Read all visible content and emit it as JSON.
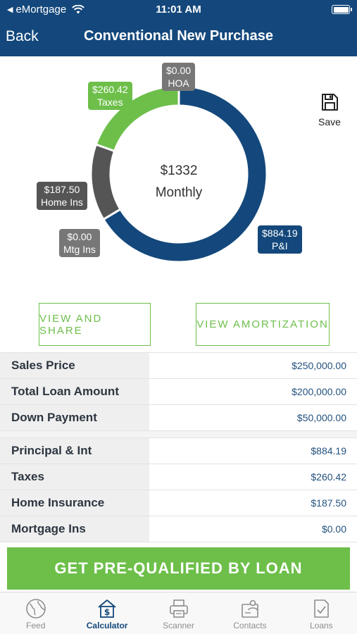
{
  "status_bar": {
    "carrier": "eMortgage",
    "time": "11:01 AM"
  },
  "nav": {
    "back_label": "Back",
    "title": "Conventional New Purchase"
  },
  "chart": {
    "center_amount": "$1332",
    "center_caption": "Monthly",
    "save_label": "Save",
    "colors": {
      "pi": "#14487c",
      "taxes": "#6dbf4a",
      "home_ins": "#555555",
      "mtg_ins": "#7a7a7a",
      "hoa": "#7a7a7a"
    },
    "labels": {
      "hoa": {
        "amount": "$0.00",
        "name": "HOA"
      },
      "taxes": {
        "amount": "$260.42",
        "name": "Taxes"
      },
      "home_ins": {
        "amount": "$187.50",
        "name": "Home Ins"
      },
      "mtg_ins": {
        "amount": "$0.00",
        "name": "Mtg Ins"
      },
      "pi": {
        "amount": "$884.19",
        "name": "P&I"
      }
    }
  },
  "chart_data": {
    "type": "pie",
    "categories": [
      "P&I",
      "Mtg Ins",
      "Home Ins",
      "Taxes",
      "HOA"
    ],
    "values": [
      884.19,
      0.0,
      187.5,
      260.42,
      0.0
    ]
  },
  "actions": {
    "view_share": "VIEW AND SHARE",
    "view_amortization": "VIEW AMORTIZATION"
  },
  "loan_table": [
    {
      "label": "Sales Price",
      "value": "$250,000.00"
    },
    {
      "label": "Total Loan Amount",
      "value": "$200,000.00"
    },
    {
      "label": "Down Payment",
      "value": "$50,000.00"
    }
  ],
  "payment_table": [
    {
      "label": "Principal & Int",
      "value": "$884.19"
    },
    {
      "label": "Taxes",
      "value": "$260.42"
    },
    {
      "label": "Home Insurance",
      "value": "$187.50"
    },
    {
      "label": "Mortgage Ins",
      "value": "$0.00"
    }
  ],
  "cta": {
    "label": "GET PRE-QUALIFIED BY LOAN"
  },
  "tabs": [
    {
      "label": "Feed",
      "icon": "globe-icon"
    },
    {
      "label": "Calculator",
      "icon": "calculator-icon"
    },
    {
      "label": "Scanner",
      "icon": "printer-icon"
    },
    {
      "label": "Contacts",
      "icon": "contacts-icon"
    },
    {
      "label": "Loans",
      "icon": "document-check-icon"
    }
  ]
}
